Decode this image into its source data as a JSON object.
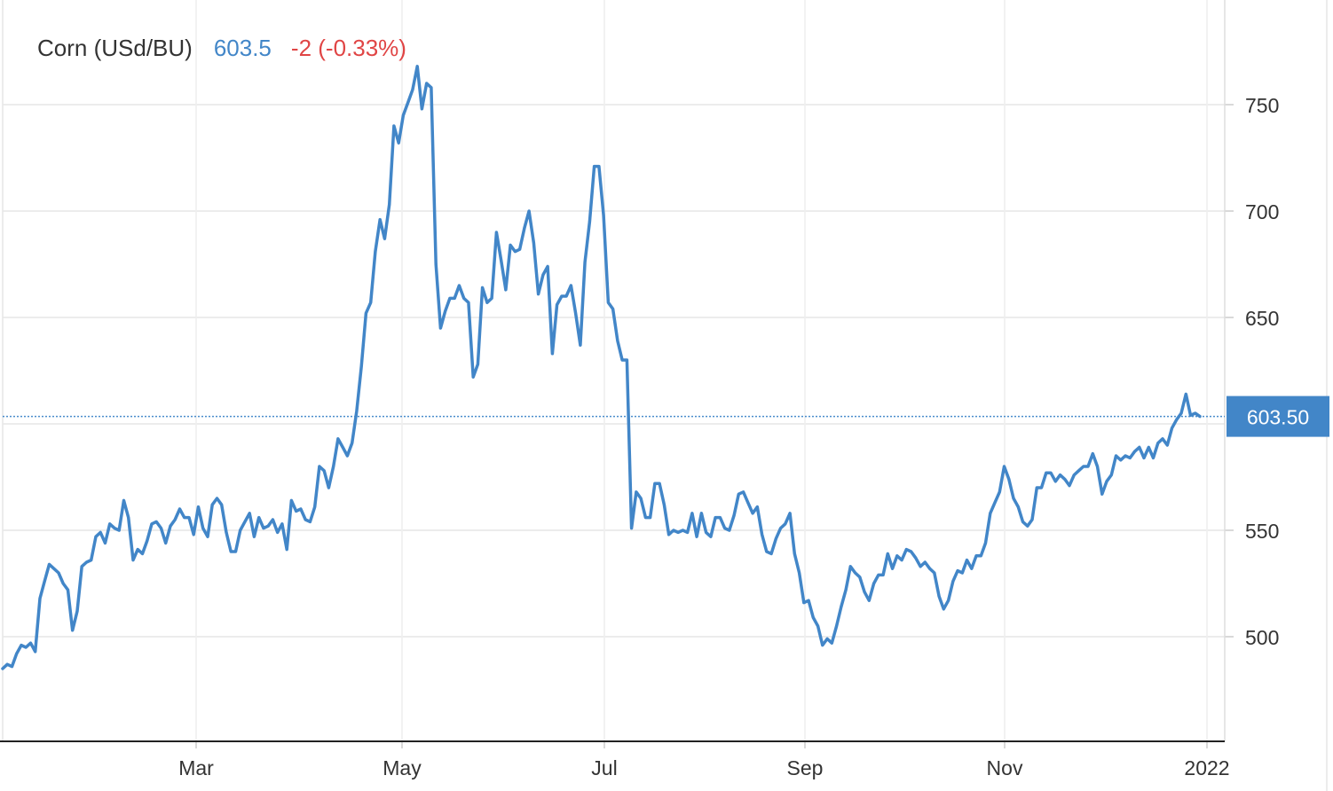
{
  "chart_data": {
    "type": "line",
    "title": "",
    "xlabel": "",
    "ylabel": "",
    "legend": {
      "name": "Corn (USd/BU)",
      "last": "603.5",
      "change": "-2 (-0.33%)"
    },
    "price_tag": "603.50",
    "x_ticks": [
      "Mar",
      "May",
      "Jul",
      "Sep",
      "Nov",
      "2022"
    ],
    "y_ticks": [
      "500",
      "550",
      "650",
      "700",
      "750"
    ],
    "ylim": [
      450,
      800
    ],
    "grid": true,
    "last_value": 603.5,
    "colors": {
      "line": "#4286c8",
      "tag": "#4286c8",
      "grid": "#e6e6e6",
      "axis": "#333333"
    },
    "series": [
      {
        "values": [
          485,
          487,
          486,
          492,
          496,
          495,
          497,
          493,
          518,
          526,
          534,
          532,
          530,
          525,
          522,
          503,
          512,
          533,
          535,
          536,
          547,
          549,
          544,
          553,
          551,
          550,
          564,
          556,
          536,
          541,
          539,
          545,
          553,
          554,
          551,
          544,
          552,
          555,
          560,
          556,
          556,
          548,
          561,
          551,
          547,
          562,
          565,
          562,
          549,
          540,
          540,
          550,
          554,
          558,
          547,
          556,
          551,
          552,
          555,
          549,
          553,
          541,
          564,
          559,
          560,
          555,
          554,
          561,
          580,
          578,
          570,
          580,
          593,
          589,
          585,
          591,
          606,
          627,
          652,
          657,
          681,
          696,
          687,
          703,
          740,
          732,
          745,
          751,
          757,
          768,
          748,
          760,
          758,
          675,
          645,
          653,
          659,
          659,
          665,
          659,
          657,
          622,
          628,
          664,
          657,
          659,
          690,
          677,
          663,
          684,
          681,
          682,
          692,
          700,
          685,
          661,
          670,
          674,
          633,
          656,
          660,
          660,
          665,
          652,
          637,
          676,
          695,
          721,
          721,
          698,
          657,
          654,
          639,
          630,
          630,
          551,
          568,
          565,
          556,
          556,
          572,
          572,
          562,
          548,
          550,
          549,
          550,
          549,
          558,
          547,
          558,
          549,
          547,
          556,
          556,
          551,
          550,
          557,
          567,
          568,
          563,
          558,
          561,
          548,
          540,
          539,
          546,
          551,
          553,
          558,
          539,
          530,
          516,
          517,
          509,
          505,
          496,
          499,
          497,
          505,
          514,
          522,
          533,
          530,
          528,
          521,
          517,
          525,
          529,
          529,
          539,
          532,
          538,
          536,
          541,
          540,
          537,
          533,
          535,
          532,
          530,
          519,
          513,
          517,
          526,
          531,
          530,
          536,
          532,
          538,
          538,
          544,
          558,
          563,
          568,
          580,
          574,
          565,
          561,
          554,
          552,
          555,
          570,
          570,
          577,
          577,
          573,
          576,
          574,
          571,
          576,
          578,
          580,
          580,
          586,
          580,
          567,
          573,
          576,
          585,
          583,
          585,
          584,
          587,
          589,
          584,
          589,
          584,
          591,
          593,
          590,
          598,
          602,
          605,
          614,
          604,
          605,
          603.5
        ]
      }
    ]
  }
}
